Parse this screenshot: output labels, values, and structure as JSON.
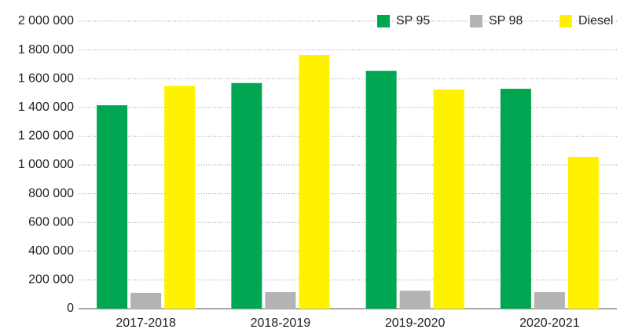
{
  "chart_data": {
    "type": "bar",
    "categories": [
      "2017-2018",
      "2018-2019",
      "2019-2020",
      "2020-2021"
    ],
    "series": [
      {
        "name": "SP 95",
        "color": "#00a651",
        "values": [
          1415000,
          1570000,
          1655000,
          1530000
        ]
      },
      {
        "name": "SP 98",
        "color": "#b3b3b3",
        "values": [
          110000,
          115000,
          125000,
          115000
        ]
      },
      {
        "name": "Diesel",
        "color": "#fff200",
        "values": [
          1550000,
          1765000,
          1525000,
          1055000
        ]
      }
    ],
    "ylim": [
      0,
      2000000
    ],
    "yticks": [
      0,
      {
        "value": 200000,
        "label": "200 000"
      },
      {
        "value": 400000,
        "label": "400 000"
      },
      {
        "value": 600000,
        "label": "600 000"
      },
      {
        "value": 800000,
        "label": "800 000"
      },
      {
        "value": 1000000,
        "label": "1 000 000"
      },
      {
        "value": 1200000,
        "label": "1 200 000"
      },
      {
        "value": 1400000,
        "label": "1 400 000"
      },
      {
        "value": 1600000,
        "label": "1 600 000"
      },
      {
        "value": 1800000,
        "label": "1 800 000"
      },
      {
        "value": 2000000,
        "label": "2 000 000"
      }
    ],
    "grid": true,
    "legend": "upper right"
  }
}
